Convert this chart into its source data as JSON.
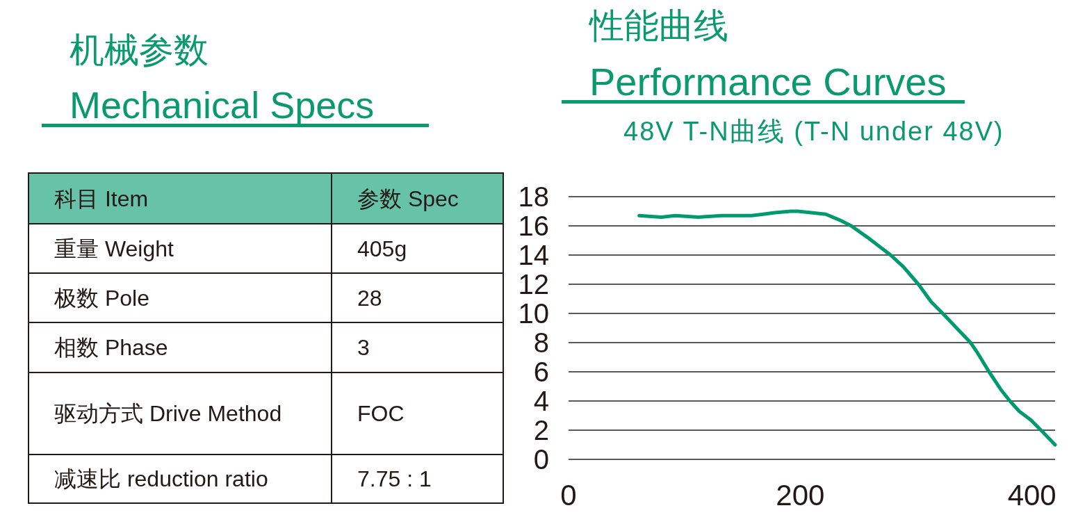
{
  "chart_data": [
    {
      "type": "other",
      "title": "机械参数",
      "subtitle": "Mechanical Specs",
      "annotations": [
        "科目 Item",
        "参数 Spec",
        "重量 Weight",
        "405g",
        "极数 Pole",
        "28",
        "相数 Phase",
        "3",
        "驱动方式 Drive Method",
        "FOC",
        "减速比 reduction ratio",
        "7.75 : 1"
      ]
    },
    {
      "type": "line",
      "title": "性能曲线",
      "subtitle": "Performance Curves",
      "annotations": [
        "48V T-N曲线 (T-N under 48V)"
      ],
      "x": [
        61,
        80,
        92,
        112,
        132,
        152,
        158,
        168,
        178,
        192,
        198,
        222,
        234,
        244,
        260,
        278,
        289,
        302,
        313,
        323,
        341,
        347,
        353,
        363,
        373,
        381,
        389,
        399,
        409,
        420
      ],
      "values": [
        16.7,
        16.6,
        16.7,
        16.6,
        16.7,
        16.7,
        16.7,
        16.8,
        16.9,
        17.0,
        17.0,
        16.8,
        16.4,
        16.0,
        15.1,
        14.0,
        13.2,
        12.0,
        10.8,
        10.0,
        8.5,
        8.0,
        7.3,
        6.0,
        4.8,
        4.0,
        3.3,
        2.7,
        1.9,
        1.0
      ],
      "color": "#009a70",
      "xlim": [
        0,
        420
      ],
      "xticks": [
        0,
        200,
        400
      ],
      "ylim": [
        0,
        18
      ],
      "yticks": [
        0,
        2,
        4,
        6,
        8,
        10,
        12,
        14,
        16,
        18
      ],
      "grid": "y",
      "marker": "none",
      "line_style": "solid"
    }
  ]
}
